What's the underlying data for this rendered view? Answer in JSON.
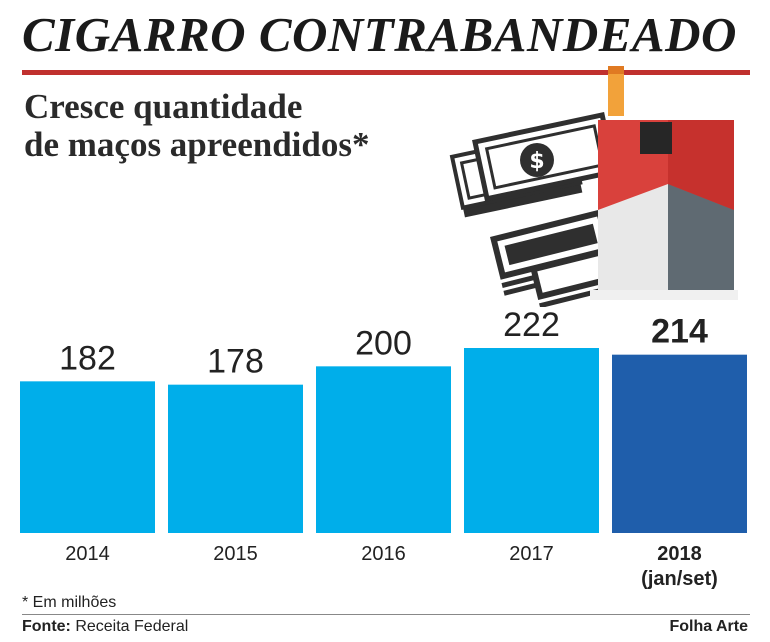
{
  "headline": "CIGARRO CONTRABANDEADO",
  "subtitle": [
    "Cresce quantidade",
    "de maços apreendidos*"
  ],
  "illustration": {
    "icons": [
      "money-stack-icon",
      "dollar-sign-icon",
      "cigarette-pack-icon"
    ]
  },
  "colors": {
    "bar": "#00aeea",
    "bar_highlight": "#1f5eab",
    "rule": "#c0302e"
  },
  "chart_data": {
    "type": "bar",
    "categories": [
      "2014",
      "2015",
      "2016",
      "2017",
      "2018"
    ],
    "category_notes": [
      "",
      "",
      "",
      "",
      "(jan/set)"
    ],
    "values": [
      182,
      178,
      200,
      222,
      214
    ],
    "value_labels": [
      "182",
      "178",
      "200",
      "222",
      "214"
    ],
    "highlight_index": 4,
    "ylim": [
      0,
      222
    ],
    "grid": false,
    "legend": "none"
  },
  "footer": {
    "note": "* Em milhões",
    "source_label": "Fonte:",
    "source": "Receita Federal",
    "credit": "Folha Arte"
  }
}
